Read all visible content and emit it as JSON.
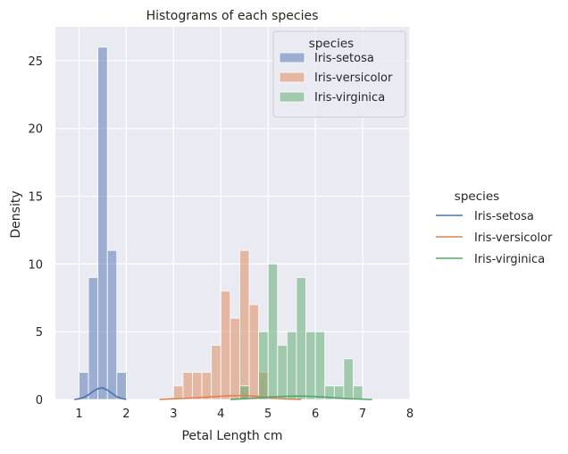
{
  "chart_data": {
    "type": "bar",
    "title": "Histograms of each species",
    "xlabel": "Petal Length cm",
    "ylabel": "Density",
    "xlim": [
      0.5,
      8.0
    ],
    "ylim": [
      0,
      27.5
    ],
    "xticks": [
      1,
      2,
      3,
      4,
      5,
      6,
      7,
      8
    ],
    "yticks": [
      0,
      5,
      10,
      15,
      20,
      25
    ],
    "grid": true,
    "bin_width": 0.2,
    "inner_legend": {
      "title": "species",
      "position": "top-right",
      "entries": [
        "Iris-setosa",
        "Iris-versicolor",
        "Iris-virginica"
      ]
    },
    "outer_legend": {
      "title": "species",
      "position": "right",
      "entries": [
        "Iris-setosa",
        "Iris-versicolor",
        "Iris-virginica"
      ]
    },
    "series": [
      {
        "name": "Iris-setosa",
        "color": "#4c72b0",
        "bins": [
          {
            "x0": 1.0,
            "value": 2
          },
          {
            "x0": 1.2,
            "value": 9
          },
          {
            "x0": 1.4,
            "value": 26
          },
          {
            "x0": 1.6,
            "value": 11
          },
          {
            "x0": 1.8,
            "value": 2
          }
        ],
        "kde": [
          [
            0.9,
            0.0
          ],
          [
            1.0,
            0.05
          ],
          [
            1.1,
            0.15
          ],
          [
            1.2,
            0.35
          ],
          [
            1.3,
            0.6
          ],
          [
            1.4,
            0.8
          ],
          [
            1.5,
            0.85
          ],
          [
            1.6,
            0.7
          ],
          [
            1.7,
            0.45
          ],
          [
            1.8,
            0.2
          ],
          [
            1.9,
            0.08
          ],
          [
            2.0,
            0.0
          ]
        ]
      },
      {
        "name": "Iris-versicolor",
        "color": "#dd8452",
        "bins": [
          {
            "x0": 3.0,
            "value": 1
          },
          {
            "x0": 3.2,
            "value": 2
          },
          {
            "x0": 3.4,
            "value": 2
          },
          {
            "x0": 3.6,
            "value": 2
          },
          {
            "x0": 3.8,
            "value": 4
          },
          {
            "x0": 4.0,
            "value": 8
          },
          {
            "x0": 4.2,
            "value": 6
          },
          {
            "x0": 4.4,
            "value": 11
          },
          {
            "x0": 4.6,
            "value": 7
          },
          {
            "x0": 4.8,
            "value": 2
          }
        ],
        "kde": [
          [
            2.7,
            0.0
          ],
          [
            3.0,
            0.05
          ],
          [
            3.3,
            0.1
          ],
          [
            3.6,
            0.15
          ],
          [
            3.9,
            0.22
          ],
          [
            4.2,
            0.28
          ],
          [
            4.5,
            0.3
          ],
          [
            4.8,
            0.22
          ],
          [
            5.1,
            0.1
          ],
          [
            5.4,
            0.03
          ],
          [
            5.7,
            0.0
          ]
        ]
      },
      {
        "name": "Iris-virginica",
        "color": "#55a868",
        "bins": [
          {
            "x0": 4.4,
            "value": 1
          },
          {
            "x0": 4.6,
            "value": 0
          },
          {
            "x0": 4.8,
            "value": 5
          },
          {
            "x0": 5.0,
            "value": 10
          },
          {
            "x0": 5.2,
            "value": 4
          },
          {
            "x0": 5.4,
            "value": 5
          },
          {
            "x0": 5.6,
            "value": 9
          },
          {
            "x0": 5.8,
            "value": 5
          },
          {
            "x0": 6.0,
            "value": 5
          },
          {
            "x0": 6.2,
            "value": 1
          },
          {
            "x0": 6.4,
            "value": 1
          },
          {
            "x0": 6.6,
            "value": 3
          },
          {
            "x0": 6.8,
            "value": 1
          }
        ],
        "kde": [
          [
            4.2,
            0.0
          ],
          [
            4.5,
            0.05
          ],
          [
            4.8,
            0.12
          ],
          [
            5.1,
            0.2
          ],
          [
            5.4,
            0.24
          ],
          [
            5.7,
            0.25
          ],
          [
            6.0,
            0.22
          ],
          [
            6.3,
            0.15
          ],
          [
            6.6,
            0.08
          ],
          [
            6.9,
            0.03
          ],
          [
            7.2,
            0.0
          ]
        ]
      }
    ]
  }
}
